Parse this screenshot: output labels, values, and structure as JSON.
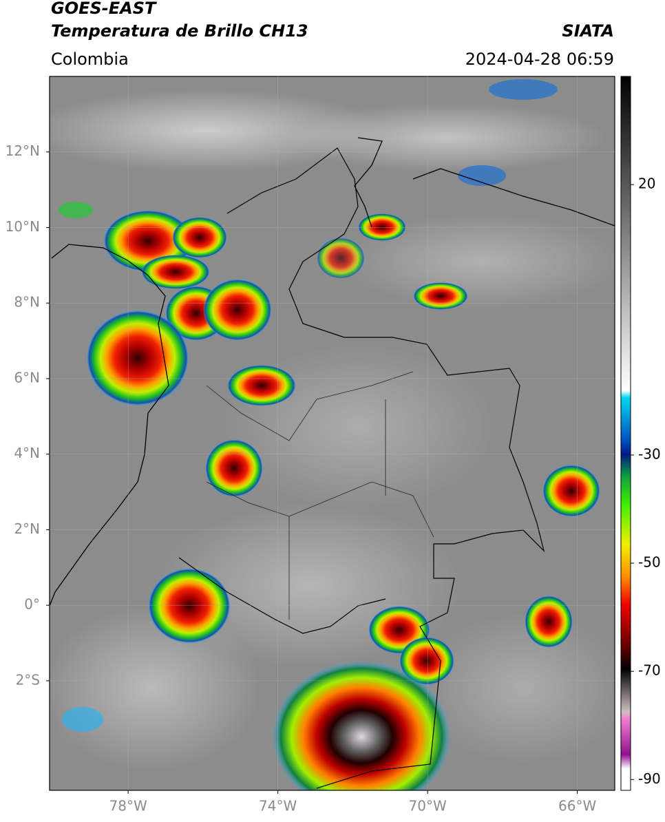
{
  "header": {
    "title": "GOES-EAST",
    "subtitle": "Temperatura de Brillo CH13",
    "source": "SIATA",
    "region": "Colombia",
    "timestamp": "2024-04-28 06:59"
  },
  "map": {
    "xlim": [
      -80.1,
      -65
    ],
    "ylim": [
      -4.9,
      14
    ],
    "xticks": [
      {
        "value": -78,
        "label": "78°W"
      },
      {
        "value": -74,
        "label": "74°W"
      },
      {
        "value": -70,
        "label": "70°W"
      },
      {
        "value": -66,
        "label": "66°W"
      }
    ],
    "yticks": [
      {
        "value": 12,
        "label": "12°N"
      },
      {
        "value": 10,
        "label": "10°N"
      },
      {
        "value": 8,
        "label": "8°N"
      },
      {
        "value": 6,
        "label": "6°N"
      },
      {
        "value": 4,
        "label": "4°N"
      },
      {
        "value": 2,
        "label": "2°N"
      },
      {
        "value": 0,
        "label": "0°"
      },
      {
        "value": -2,
        "label": "2°S"
      }
    ],
    "grid": true
  },
  "colorbar": {
    "lim": [
      40,
      -92
    ],
    "ticks": [
      20,
      -30,
      -50,
      -70,
      -90
    ]
  }
}
